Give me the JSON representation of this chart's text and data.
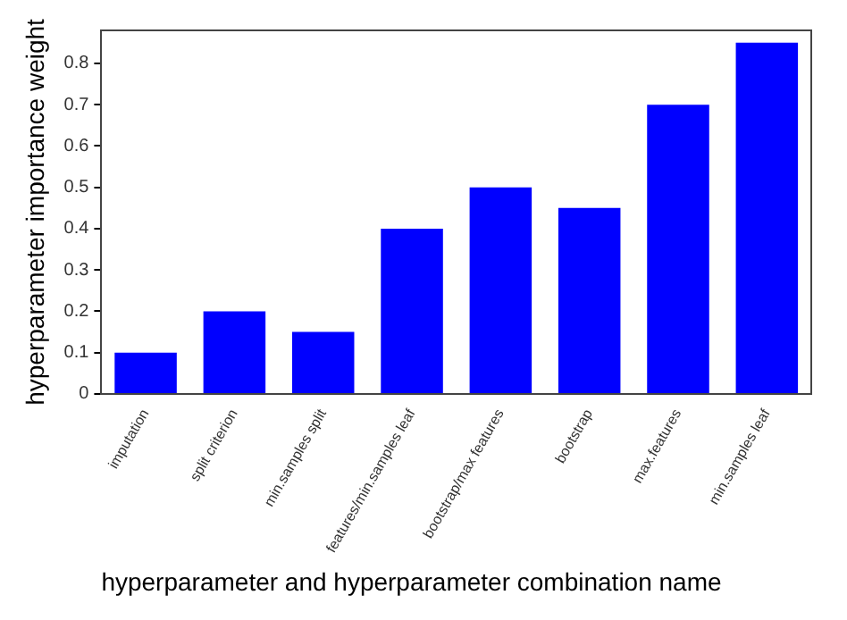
{
  "chart_data": {
    "type": "bar",
    "xlabel": "hyperparameter and hyperparameter combination name",
    "ylabel": "hyperparameter importance weight",
    "categories": [
      "imputation",
      "split criterion",
      "min.samples split",
      "features/min.samples leaf",
      "bootstrap/max features",
      "bootstrap",
      "max.features",
      "min.samples leaf"
    ],
    "values": [
      0.1,
      0.2,
      0.15,
      0.4,
      0.5,
      0.45,
      0.7,
      0.85
    ],
    "color": "#0000ff",
    "ylim": [
      0,
      0.88
    ],
    "yticks": [
      0,
      0.1,
      0.2,
      0.3,
      0.4,
      0.5,
      0.6,
      0.7,
      0.8
    ],
    "grid": false,
    "legend": false
  }
}
